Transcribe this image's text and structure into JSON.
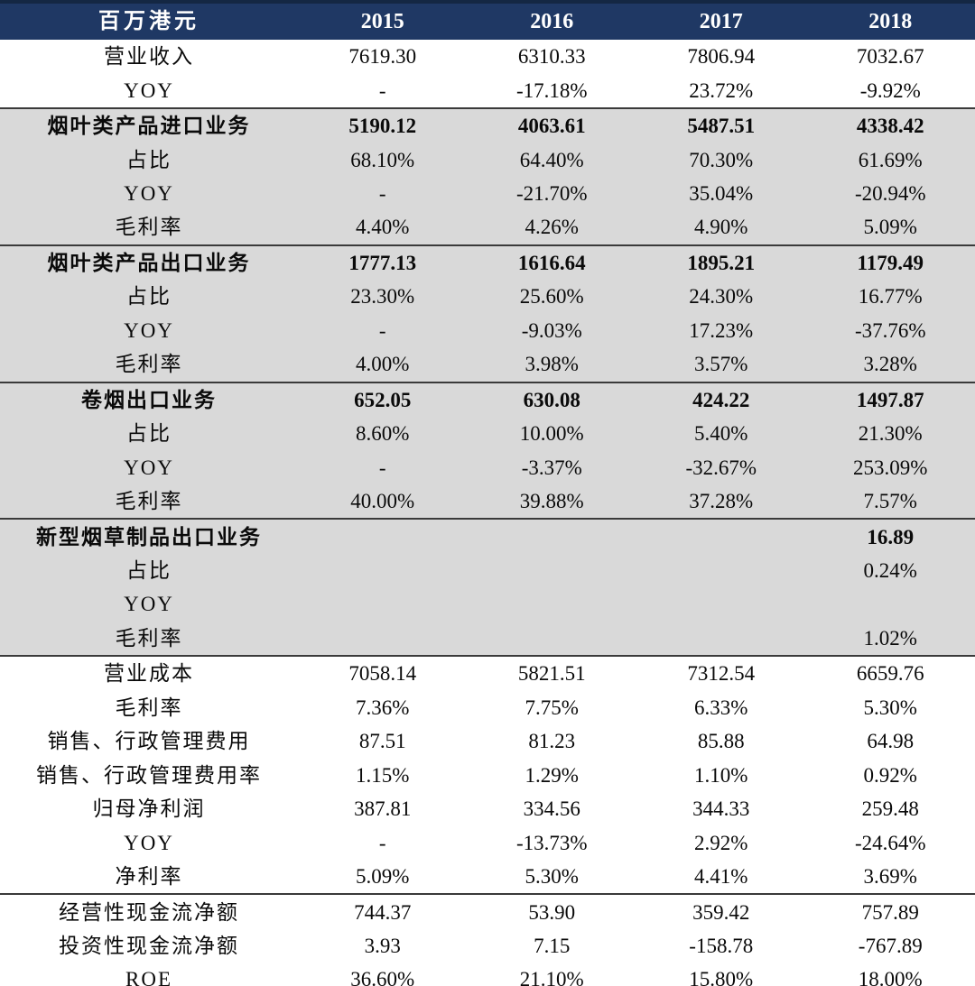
{
  "colors": {
    "header_background": "#1f3864",
    "header_top_border": "#142743",
    "header_text": "#ffffff",
    "band_gray": "#d9d9d9",
    "band_white": "#ffffff",
    "separator_line": "#3a3a3a",
    "body_text": "#0a0a0a"
  },
  "chart_data": {
    "type": "table",
    "title": "",
    "unit_label": "百万港元",
    "columns": [
      "百万港元",
      "2015",
      "2016",
      "2017",
      "2018"
    ],
    "rows": [
      {
        "label": "营业收入",
        "values": [
          "7619.30",
          "6310.33",
          "7806.94",
          "7032.67"
        ],
        "bold": false,
        "band": "white",
        "sep_above": false
      },
      {
        "label": "YOY",
        "values": [
          "-",
          "-17.18%",
          "23.72%",
          "-9.92%"
        ],
        "bold": false,
        "band": "white",
        "sep_above": false
      },
      {
        "label": "烟叶类产品进口业务",
        "values": [
          "5190.12",
          "4063.61",
          "5487.51",
          "4338.42"
        ],
        "bold": true,
        "band": "gray",
        "sep_above": true
      },
      {
        "label": "占比",
        "values": [
          "68.10%",
          "64.40%",
          "70.30%",
          "61.69%"
        ],
        "bold": false,
        "band": "gray",
        "sep_above": false
      },
      {
        "label": "YOY",
        "values": [
          "-",
          "-21.70%",
          "35.04%",
          "-20.94%"
        ],
        "bold": false,
        "band": "gray",
        "sep_above": false
      },
      {
        "label": "毛利率",
        "values": [
          "4.40%",
          "4.26%",
          "4.90%",
          "5.09%"
        ],
        "bold": false,
        "band": "gray",
        "sep_above": false
      },
      {
        "label": "烟叶类产品出口业务",
        "values": [
          "1777.13",
          "1616.64",
          "1895.21",
          "1179.49"
        ],
        "bold": true,
        "band": "gray",
        "sep_above": true
      },
      {
        "label": "占比",
        "values": [
          "23.30%",
          "25.60%",
          "24.30%",
          "16.77%"
        ],
        "bold": false,
        "band": "gray",
        "sep_above": false
      },
      {
        "label": "YOY",
        "values": [
          "-",
          "-9.03%",
          "17.23%",
          "-37.76%"
        ],
        "bold": false,
        "band": "gray",
        "sep_above": false
      },
      {
        "label": "毛利率",
        "values": [
          "4.00%",
          "3.98%",
          "3.57%",
          "3.28%"
        ],
        "bold": false,
        "band": "gray",
        "sep_above": false
      },
      {
        "label": "卷烟出口业务",
        "values": [
          "652.05",
          "630.08",
          "424.22",
          "1497.87"
        ],
        "bold": true,
        "band": "gray",
        "sep_above": true
      },
      {
        "label": "占比",
        "values": [
          "8.60%",
          "10.00%",
          "5.40%",
          "21.30%"
        ],
        "bold": false,
        "band": "gray",
        "sep_above": false
      },
      {
        "label": "YOY",
        "values": [
          "-",
          "-3.37%",
          "-32.67%",
          "253.09%"
        ],
        "bold": false,
        "band": "gray",
        "sep_above": false
      },
      {
        "label": "毛利率",
        "values": [
          "40.00%",
          "39.88%",
          "37.28%",
          "7.57%"
        ],
        "bold": false,
        "band": "gray",
        "sep_above": false
      },
      {
        "label": "新型烟草制品出口业务",
        "values": [
          "",
          "",
          "",
          "16.89"
        ],
        "bold": true,
        "band": "gray",
        "sep_above": true
      },
      {
        "label": "占比",
        "values": [
          "",
          "",
          "",
          "0.24%"
        ],
        "bold": false,
        "band": "gray",
        "sep_above": false
      },
      {
        "label": "YOY",
        "values": [
          "",
          "",
          "",
          ""
        ],
        "bold": false,
        "band": "gray",
        "sep_above": false
      },
      {
        "label": "毛利率",
        "values": [
          "",
          "",
          "",
          "1.02%"
        ],
        "bold": false,
        "band": "gray",
        "sep_above": false
      },
      {
        "label": "营业成本",
        "values": [
          "7058.14",
          "5821.51",
          "7312.54",
          "6659.76"
        ],
        "bold": false,
        "band": "white",
        "sep_above": true
      },
      {
        "label": "毛利率",
        "values": [
          "7.36%",
          "7.75%",
          "6.33%",
          "5.30%"
        ],
        "bold": false,
        "band": "white",
        "sep_above": false
      },
      {
        "label": "销售、行政管理费用",
        "values": [
          "87.51",
          "81.23",
          "85.88",
          "64.98"
        ],
        "bold": false,
        "band": "white",
        "sep_above": false
      },
      {
        "label": "销售、行政管理费用率",
        "values": [
          "1.15%",
          "1.29%",
          "1.10%",
          "0.92%"
        ],
        "bold": false,
        "band": "white",
        "sep_above": false
      },
      {
        "label": "归母净利润",
        "values": [
          "387.81",
          "334.56",
          "344.33",
          "259.48"
        ],
        "bold": false,
        "band": "white",
        "sep_above": false
      },
      {
        "label": "YOY",
        "values": [
          "-",
          "-13.73%",
          "2.92%",
          "-24.64%"
        ],
        "bold": false,
        "band": "white",
        "sep_above": false
      },
      {
        "label": "净利率",
        "values": [
          "5.09%",
          "5.30%",
          "4.41%",
          "3.69%"
        ],
        "bold": false,
        "band": "white",
        "sep_above": false
      },
      {
        "label": "经营性现金流净额",
        "values": [
          "744.37",
          "53.90",
          "359.42",
          "757.89"
        ],
        "bold": false,
        "band": "white",
        "sep_above": true
      },
      {
        "label": "投资性现金流净额",
        "values": [
          "3.93",
          "7.15",
          "-158.78",
          "-767.89"
        ],
        "bold": false,
        "band": "white",
        "sep_above": false
      },
      {
        "label": "ROE",
        "values": [
          "36.60%",
          "21.10%",
          "15.80%",
          "18.00%"
        ],
        "bold": false,
        "band": "white",
        "sep_above": false
      }
    ]
  }
}
